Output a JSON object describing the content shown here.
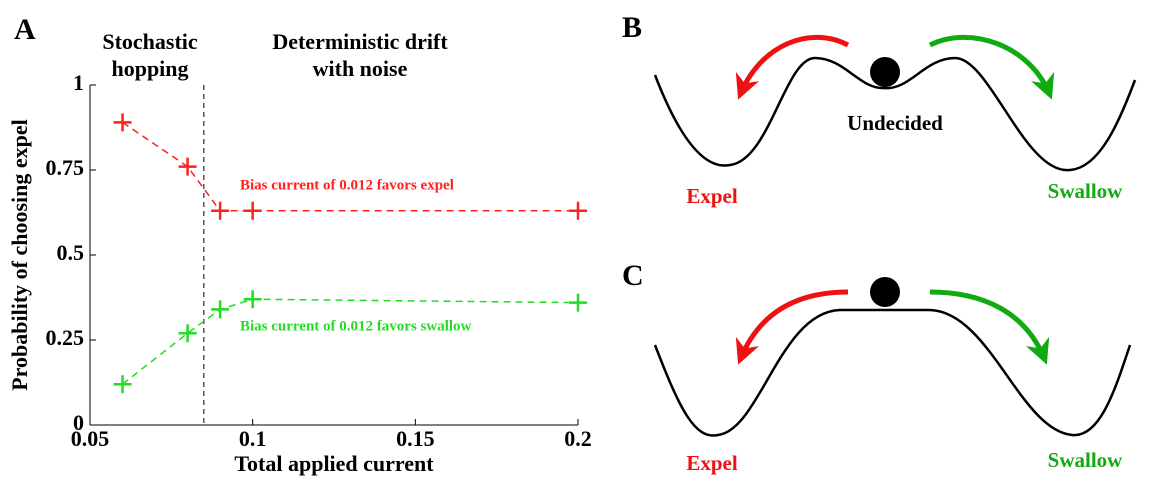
{
  "chart_data": {
    "type": "line",
    "panel_label": "A",
    "annotations": [
      [
        "Stochastic",
        "hopping"
      ],
      [
        "Deterministic drift",
        "with noise"
      ]
    ],
    "divider_x": 0.085,
    "x": [
      0.06,
      0.08,
      0.09,
      0.1,
      0.2
    ],
    "series": [
      {
        "name": "Bias current of 0.012 favors expel",
        "color": "#ff2020",
        "values": [
          0.89,
          0.76,
          0.63,
          0.63,
          0.63
        ]
      },
      {
        "name": "Bias current of 0.012 favors swallow",
        "color": "#22dd22",
        "values": [
          0.12,
          0.27,
          0.34,
          0.37,
          0.36
        ]
      }
    ],
    "xlabel": "Total applied current",
    "ylabel": "Probability of choosing expel",
    "xlim": [
      0.05,
      0.2
    ],
    "xticks": [
      0.05,
      0.1,
      0.15,
      0.2
    ],
    "ylim": [
      0,
      1
    ],
    "yticks": [
      0,
      0.25,
      0.5,
      0.75,
      1
    ]
  },
  "diagrams": [
    {
      "label": "B",
      "center_label": "Undecided",
      "left_label": "Expel",
      "right_label": "Swallow"
    },
    {
      "label": "C",
      "left_label": "Expel",
      "right_label": "Swallow"
    }
  ]
}
